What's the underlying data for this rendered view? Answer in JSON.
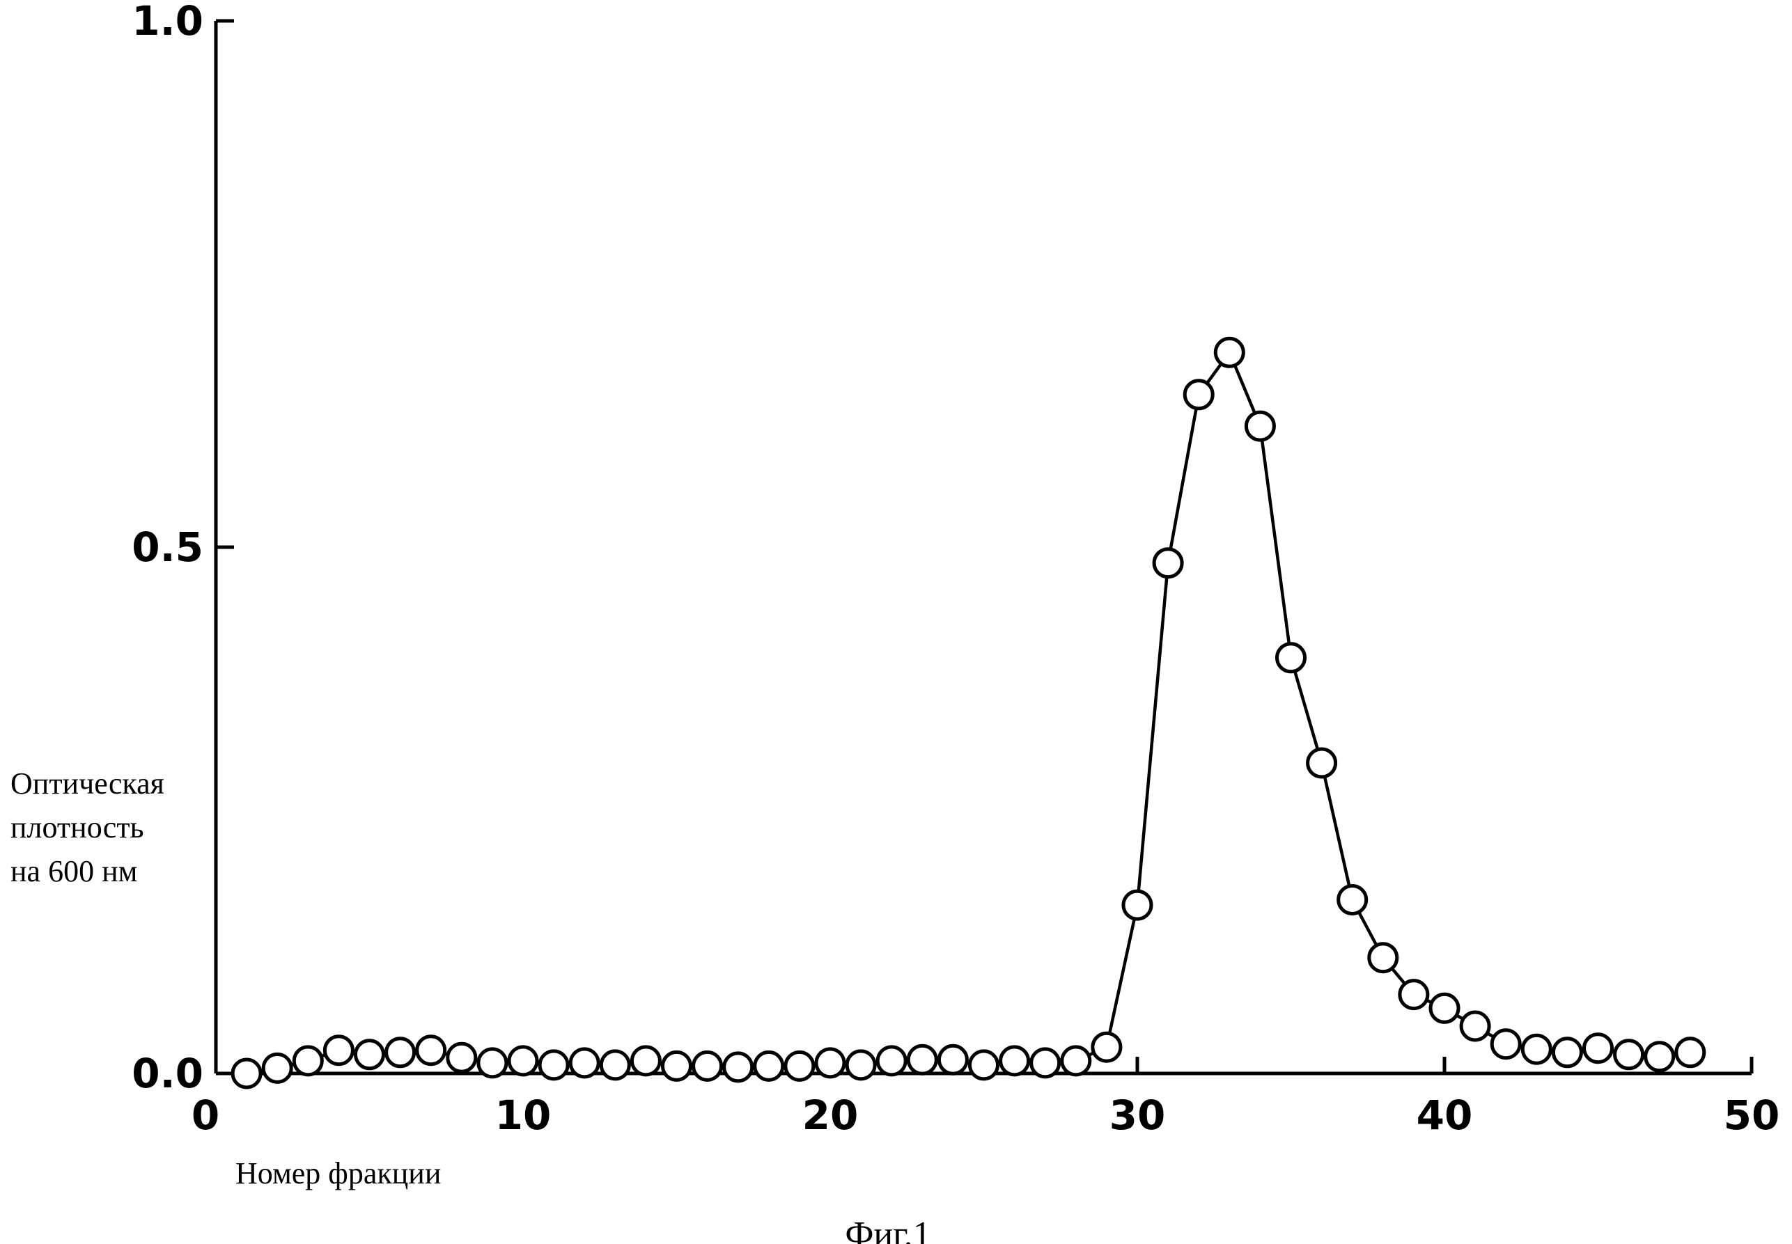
{
  "chart_data": {
    "type": "line",
    "title": "",
    "xlabel": "Номер фракции",
    "ylabel_lines": [
      "Оптическая",
      "плотность",
      "на 600 нм"
    ],
    "caption": "Фиг.1",
    "xlim": [
      0,
      50
    ],
    "ylim": [
      0,
      1.0
    ],
    "x_ticks": [
      0,
      10,
      20,
      30,
      40,
      50
    ],
    "x_tick_labels": [
      "0",
      "10",
      "20",
      "30",
      "40",
      "50"
    ],
    "y_ticks": [
      0.0,
      0.5,
      1.0
    ],
    "y_tick_labels": [
      "0.0",
      "0.5",
      "1.0"
    ],
    "grid": false,
    "marker": "open-circle",
    "series": [
      {
        "x": [
          1,
          2,
          3,
          4,
          5,
          6,
          7,
          8,
          9,
          10,
          11,
          12,
          13,
          14,
          15,
          16,
          17,
          18,
          19,
          20,
          21,
          22,
          23,
          24,
          25,
          26,
          27,
          28,
          29,
          30,
          31,
          32,
          33,
          34,
          35,
          36,
          37,
          38,
          39,
          40,
          41,
          42,
          43,
          44,
          45,
          46,
          47,
          48
        ],
        "y": [
          0.0,
          0.005,
          0.012,
          0.022,
          0.018,
          0.02,
          0.022,
          0.015,
          0.01,
          0.012,
          0.008,
          0.01,
          0.008,
          0.012,
          0.007,
          0.007,
          0.006,
          0.007,
          0.007,
          0.01,
          0.008,
          0.012,
          0.013,
          0.013,
          0.008,
          0.012,
          0.01,
          0.012,
          0.025,
          0.16,
          0.485,
          0.645,
          0.685,
          0.615,
          0.395,
          0.295,
          0.165,
          0.11,
          0.075,
          0.062,
          0.045,
          0.028,
          0.023,
          0.02,
          0.024,
          0.018,
          0.016,
          0.02
        ]
      }
    ]
  }
}
